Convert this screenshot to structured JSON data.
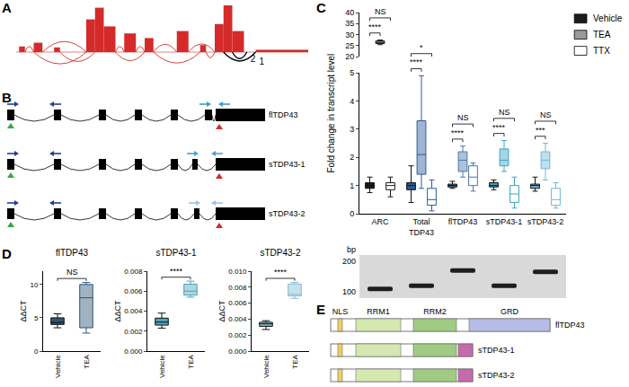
{
  "panel_labels": {
    "a": "A",
    "b": "B",
    "c": "C",
    "d": "D",
    "e": "E"
  },
  "sashimi": {
    "coverage": [
      [
        1,
        3,
        0.12
      ],
      [
        6,
        9,
        0.2
      ],
      [
        13,
        15,
        0.1
      ],
      [
        24,
        27,
        0.7
      ],
      [
        27,
        30,
        0.95
      ],
      [
        30,
        34,
        0.55
      ],
      [
        37,
        41,
        0.4
      ],
      [
        44,
        47,
        0.3
      ],
      [
        55,
        59,
        0.45
      ],
      [
        63,
        65,
        0.15
      ],
      [
        68,
        71,
        0.6
      ],
      [
        71,
        74,
        1.0
      ],
      [
        74,
        78,
        0.45
      ],
      [
        82,
        100,
        0.05
      ]
    ],
    "junctions": [
      {
        "from": 3,
        "to": 6,
        "side": "up"
      },
      {
        "from": 9,
        "to": 24,
        "side": "up"
      },
      {
        "from": 34,
        "to": 37,
        "side": "up"
      },
      {
        "from": 41,
        "to": 44,
        "side": "up"
      },
      {
        "from": 47,
        "to": 55,
        "side": "up"
      },
      {
        "from": 59,
        "to": 68,
        "side": "up"
      },
      {
        "from": 6,
        "to": 24,
        "side": "down"
      },
      {
        "from": 15,
        "to": 27,
        "side": "down"
      },
      {
        "from": 34,
        "to": 44,
        "side": "down"
      },
      {
        "from": 47,
        "to": 63,
        "side": "down"
      },
      {
        "from": 65,
        "to": 68,
        "side": "down"
      },
      {
        "from": 71,
        "to": 82,
        "side": "down",
        "label": "1"
      },
      {
        "from": 74,
        "to": 79,
        "side": "down",
        "label": "2"
      }
    ]
  },
  "transcripts": [
    "flTDP43",
    "sTDP43-1",
    "sTDP43-2"
  ],
  "chart_data": [
    {
      "type": "box",
      "y_label": "Fold change in transcript level",
      "categories": [
        "ARC",
        "Total TDP43",
        "flTDP43",
        "sTDP43-1",
        "sTDP43-2"
      ],
      "colors": [
        "#1c1c1c",
        "#2a5a9c",
        "#4a78a8",
        "#3aa3c2",
        "#6fb7d4"
      ],
      "series": [
        {
          "name": "Vehicle",
          "color": "#1c1c1c",
          "marker": "solid",
          "boxes": [
            [
              0.75,
              0.9,
              1.0,
              1.1,
              1.3
            ],
            [
              0.4,
              0.85,
              1.0,
              1.1,
              1.7
            ],
            [
              0.9,
              0.95,
              1.0,
              1.05,
              1.15
            ],
            [
              0.85,
              0.95,
              1.0,
              1.1,
              1.2
            ],
            [
              0.8,
              0.9,
              1.0,
              1.05,
              1.3
            ]
          ]
        },
        {
          "name": "TEA",
          "color": "#1c1c1c",
          "marker": "hatched",
          "boxes": [
            [
              25.5,
              26,
              26.5,
              27.2,
              27.6
            ],
            [
              0.9,
              1.4,
              2.1,
              3.3,
              4.9
            ],
            [
              1.3,
              1.5,
              1.9,
              2.2,
              2.4
            ],
            [
              1.5,
              1.7,
              1.9,
              2.3,
              2.6
            ],
            [
              1.2,
              1.6,
              1.9,
              2.2,
              2.5
            ]
          ]
        },
        {
          "name": "TTX",
          "color": "#ffffff",
          "marker": "open",
          "boxes": [
            [
              0.6,
              0.85,
              1.0,
              1.1,
              1.3
            ],
            [
              0.1,
              0.3,
              0.5,
              0.9,
              1.2
            ],
            [
              0.8,
              1.0,
              1.3,
              1.7,
              1.8
            ],
            [
              0.2,
              0.4,
              0.7,
              1.0,
              1.3
            ],
            [
              0.2,
              0.3,
              0.5,
              0.9,
              1.1
            ]
          ]
        }
      ],
      "ylim": [
        0,
        5
      ],
      "yticks": [
        0,
        1,
        2,
        3,
        4,
        5
      ],
      "y2lim": [
        20,
        40
      ],
      "y2ticks": [
        20,
        25,
        30,
        35,
        40
      ],
      "grid": false,
      "legend": "upper right",
      "significance": [
        {
          "category": "ARC",
          "pair": [
            "Vehicle",
            "TEA"
          ],
          "label": "****"
        },
        {
          "category": "ARC",
          "pair": [
            "Vehicle",
            "TTX"
          ],
          "label": "NS"
        },
        {
          "category": "Total TDP43",
          "pair": [
            "Vehicle",
            "TEA"
          ],
          "label": "****"
        },
        {
          "category": "Total TDP43",
          "pair": [
            "Vehicle",
            "TTX"
          ],
          "label": "*"
        },
        {
          "category": "flTDP43",
          "pair": [
            "Vehicle",
            "TEA"
          ],
          "label": "****"
        },
        {
          "category": "flTDP43",
          "pair": [
            "Vehicle",
            "TTX"
          ],
          "label": "NS"
        },
        {
          "category": "sTDP43-1",
          "pair": [
            "Vehicle",
            "TEA"
          ],
          "label": "****"
        },
        {
          "category": "sTDP43-1",
          "pair": [
            "Vehicle",
            "TTX"
          ],
          "label": "NS"
        },
        {
          "category": "sTDP43-2",
          "pair": [
            "Vehicle",
            "TEA"
          ],
          "label": "***"
        },
        {
          "category": "sTDP43-2",
          "pair": [
            "Vehicle",
            "TTX"
          ],
          "label": "NS"
        }
      ],
      "gel": {
        "y_label": "bp",
        "ylim": [
          80,
          220
        ],
        "yticks": [
          200,
          100
        ],
        "bands": [
          110,
          120,
          170,
          120,
          165
        ]
      }
    },
    {
      "type": "box",
      "title": "flTDP43",
      "y_label": "ΔΔCT",
      "color": "#2f5676",
      "series": [
        {
          "name": "Vehicle",
          "marker": "solid",
          "box": [
            3.5,
            4.0,
            4.3,
            5.0,
            5.6
          ]
        },
        {
          "name": "TEA",
          "marker": "hatched",
          "box": [
            2.7,
            3.5,
            8.0,
            10.0,
            10.3
          ]
        }
      ],
      "ylim": [
        0,
        12
      ],
      "yticks": [
        0,
        5,
        10
      ],
      "grid": false,
      "significance": [
        {
          "pair": [
            "Vehicle",
            "TEA"
          ],
          "label": "NS"
        }
      ]
    },
    {
      "type": "box",
      "title": "sTDP43-1",
      "y_label": "ΔΔCT",
      "color": "#4aa3bb",
      "series": [
        {
          "name": "Vehicle",
          "marker": "solid",
          "box": [
            0.0023,
            0.0026,
            0.0029,
            0.0033,
            0.0038
          ]
        },
        {
          "name": "TEA",
          "marker": "hatched",
          "box": [
            0.0054,
            0.0056,
            0.006,
            0.0067,
            0.007
          ]
        }
      ],
      "ylim": [
        0,
        0.008
      ],
      "yticks": [
        {
          "value": 0,
          "label": "0.000"
        },
        0.002,
        0.004,
        0.006,
        0.008
      ],
      "grid": false,
      "significance": [
        {
          "pair": [
            "Vehicle",
            "TEA"
          ],
          "label": "****"
        }
      ]
    },
    {
      "type": "box",
      "title": "sTDP43-2",
      "y_label": "ΔΔCT",
      "color": "#86bcd3",
      "series": [
        {
          "name": "Vehicle",
          "marker": "solid",
          "box": [
            0.0027,
            0.0031,
            0.0034,
            0.0036,
            0.0038
          ]
        },
        {
          "name": "TEA",
          "marker": "hatched",
          "box": [
            0.0066,
            0.0069,
            0.0071,
            0.0084,
            0.0086
          ]
        }
      ],
      "ylim": [
        0,
        0.01
      ],
      "yticks": [
        {
          "value": 0,
          "label": "0.000"
        },
        0.002,
        0.004,
        0.006,
        0.008,
        {
          "value": 0.01,
          "label": "0.010"
        }
      ],
      "grid": false,
      "significance": [
        {
          "pair": [
            "Vehicle",
            "TEA"
          ],
          "label": "****"
        }
      ]
    }
  ],
  "proteins": {
    "domains": [
      {
        "label": "NLS",
        "color": "#f0cf5c"
      },
      {
        "label": "RRM1",
        "color": "#d4e8b0"
      },
      {
        "label": "RRM2",
        "color": "#9fcc82"
      },
      {
        "label": "GRD"
      }
    ],
    "rows": [
      {
        "label": "flTDP43",
        "color": "#b7bbe8"
      },
      {
        "label": "sTDP43-1",
        "color": "#c46cab"
      },
      {
        "label": "sTDP43-2",
        "color": "#c46cab"
      }
    ]
  }
}
